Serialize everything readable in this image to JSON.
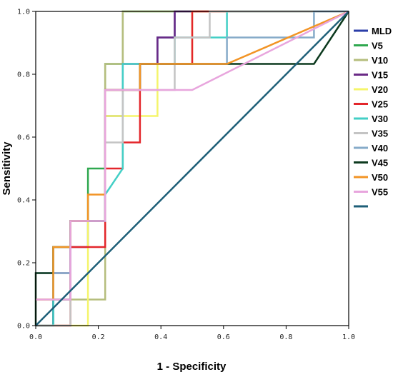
{
  "chart_data": {
    "type": "line",
    "xlabel": "1 - Specificity",
    "ylabel": "Sensitivity",
    "xlim": [
      0,
      1
    ],
    "ylim": [
      0,
      1
    ],
    "xticks": [
      "0.0",
      "0.2",
      "0.4",
      "0.6",
      "0.8",
      "1.0"
    ],
    "yticks": [
      "0.0",
      "0.2",
      "0.4",
      "0.6",
      "0.8",
      "1.0"
    ],
    "grid": false,
    "legend_position": "right",
    "series": [
      {
        "name": "MLD",
        "color": "#2b3ea8",
        "x": [
          0,
          0.056,
          0.056,
          0.111,
          0.111,
          0.167,
          0.167,
          0.222,
          0.222,
          0.222,
          0.278,
          0.278,
          0.333,
          0.333,
          0.389,
          0.389,
          0.444,
          0.444,
          0.5,
          0.5,
          1
        ],
        "y": [
          0,
          0,
          0.083,
          0.083,
          0.25,
          0.25,
          0.333,
          0.333,
          0.417,
          0.667,
          0.667,
          0.75,
          0.75,
          0.833,
          0.833,
          0.917,
          0.917,
          1.0,
          1.0,
          1.0,
          1.0
        ]
      },
      {
        "name": "V5",
        "color": "#2fa84f",
        "x": [
          0,
          0.056,
          0.056,
          0.111,
          0.111,
          0.167,
          0.167,
          0.222,
          0.222,
          0.278,
          0.278,
          1
        ],
        "y": [
          0,
          0,
          0.083,
          0.083,
          0.333,
          0.333,
          0.5,
          0.5,
          0.833,
          0.833,
          1.0,
          1.0
        ]
      },
      {
        "name": "V10",
        "color": "#b5bd7d",
        "x": [
          0,
          0.222,
          0.222,
          0.278,
          0.278,
          1
        ],
        "y": [
          0.083,
          0.083,
          0.833,
          0.833,
          1.0,
          1.0
        ]
      },
      {
        "name": "V15",
        "color": "#6a2a86",
        "x": [
          0,
          0.056,
          0.056,
          0.111,
          0.111,
          0.222,
          0.222,
          0.278,
          0.278,
          0.389,
          0.389,
          0.444,
          0.444,
          1
        ],
        "y": [
          0,
          0,
          0.167,
          0.167,
          0.333,
          0.333,
          0.75,
          0.75,
          0.833,
          0.833,
          0.917,
          0.917,
          1.0,
          1.0
        ]
      },
      {
        "name": "V20",
        "color": "#f5f56b",
        "x": [
          0,
          0.056,
          0.056,
          0.167,
          0.167,
          0.222,
          0.222,
          0.389,
          0.389,
          0.5,
          0.5,
          0.556,
          0.556,
          1
        ],
        "y": [
          0,
          0,
          0.0,
          0.0,
          0.333,
          0.333,
          0.667,
          0.667,
          0.833,
          0.833,
          1.0,
          1.0,
          1.0,
          1.0
        ]
      },
      {
        "name": "V25",
        "color": "#e3262b",
        "x": [
          0,
          0.111,
          0.111,
          0.222,
          0.222,
          0.278,
          0.278,
          0.333,
          0.333,
          0.5,
          0.5,
          1
        ],
        "y": [
          0,
          0,
          0.25,
          0.25,
          0.5,
          0.5,
          0.583,
          0.583,
          0.833,
          0.833,
          1.0,
          1.0
        ]
      },
      {
        "name": "V30",
        "color": "#43cfc6",
        "x": [
          0,
          0.056,
          0.056,
          0.111,
          0.111,
          0.222,
          0.222,
          0.278,
          0.278,
          0.444,
          0.444,
          0.611,
          0.611,
          1
        ],
        "y": [
          0,
          0,
          0.25,
          0.25,
          0.333,
          0.333,
          0.417,
          0.5,
          0.833,
          0.833,
          0.917,
          0.917,
          1.0,
          1.0
        ]
      },
      {
        "name": "V35",
        "color": "#c4c4c4",
        "x": [
          0,
          0.111,
          0.111,
          0.222,
          0.222,
          0.278,
          0.278,
          0.444,
          0.444,
          0.556,
          0.556,
          1
        ],
        "y": [
          0,
          0,
          0.333,
          0.333,
          0.583,
          0.583,
          0.75,
          0.75,
          0.917,
          0.917,
          1.0,
          1.0
        ]
      },
      {
        "name": "V40",
        "color": "#86abc9",
        "x": [
          0,
          0.111,
          0.111,
          0.222,
          0.222,
          0.333,
          0.333,
          0.611,
          0.611,
          0.889,
          0.889,
          1
        ],
        "y": [
          0.167,
          0.167,
          0.333,
          0.333,
          0.75,
          0.75,
          0.833,
          0.833,
          0.917,
          0.917,
          1.0,
          1.0
        ]
      },
      {
        "name": "V45",
        "color": "#0d3a1f",
        "x": [
          0,
          0,
          0.056,
          0.056,
          0.111,
          0.111,
          0.222,
          0.222,
          0.333,
          0.333,
          0.444,
          0.444,
          0.889,
          1
        ],
        "y": [
          0,
          0.167,
          0.167,
          0.25,
          0.25,
          0.333,
          0.333,
          0.75,
          0.75,
          0.833,
          0.833,
          0.833,
          0.833,
          1.0
        ]
      },
      {
        "name": "V50",
        "color": "#f29425",
        "x": [
          0,
          0.056,
          0.056,
          0.111,
          0.111,
          0.167,
          0.167,
          0.222,
          0.222,
          0.333,
          0.333,
          0.611,
          1
        ],
        "y": [
          0.083,
          0.083,
          0.25,
          0.25,
          0.333,
          0.333,
          0.417,
          0.417,
          0.75,
          0.75,
          0.833,
          0.833,
          1.0
        ]
      },
      {
        "name": "V55",
        "color": "#e8a5dd",
        "x": [
          0,
          0.111,
          0.111,
          0.222,
          0.222,
          0.5,
          1
        ],
        "y": [
          0.083,
          0.083,
          0.333,
          0.333,
          0.75,
          0.75,
          1.0
        ]
      },
      {
        "name": "",
        "color": "#1e5f78",
        "x": [
          0,
          1
        ],
        "y": [
          0,
          1
        ]
      }
    ]
  }
}
